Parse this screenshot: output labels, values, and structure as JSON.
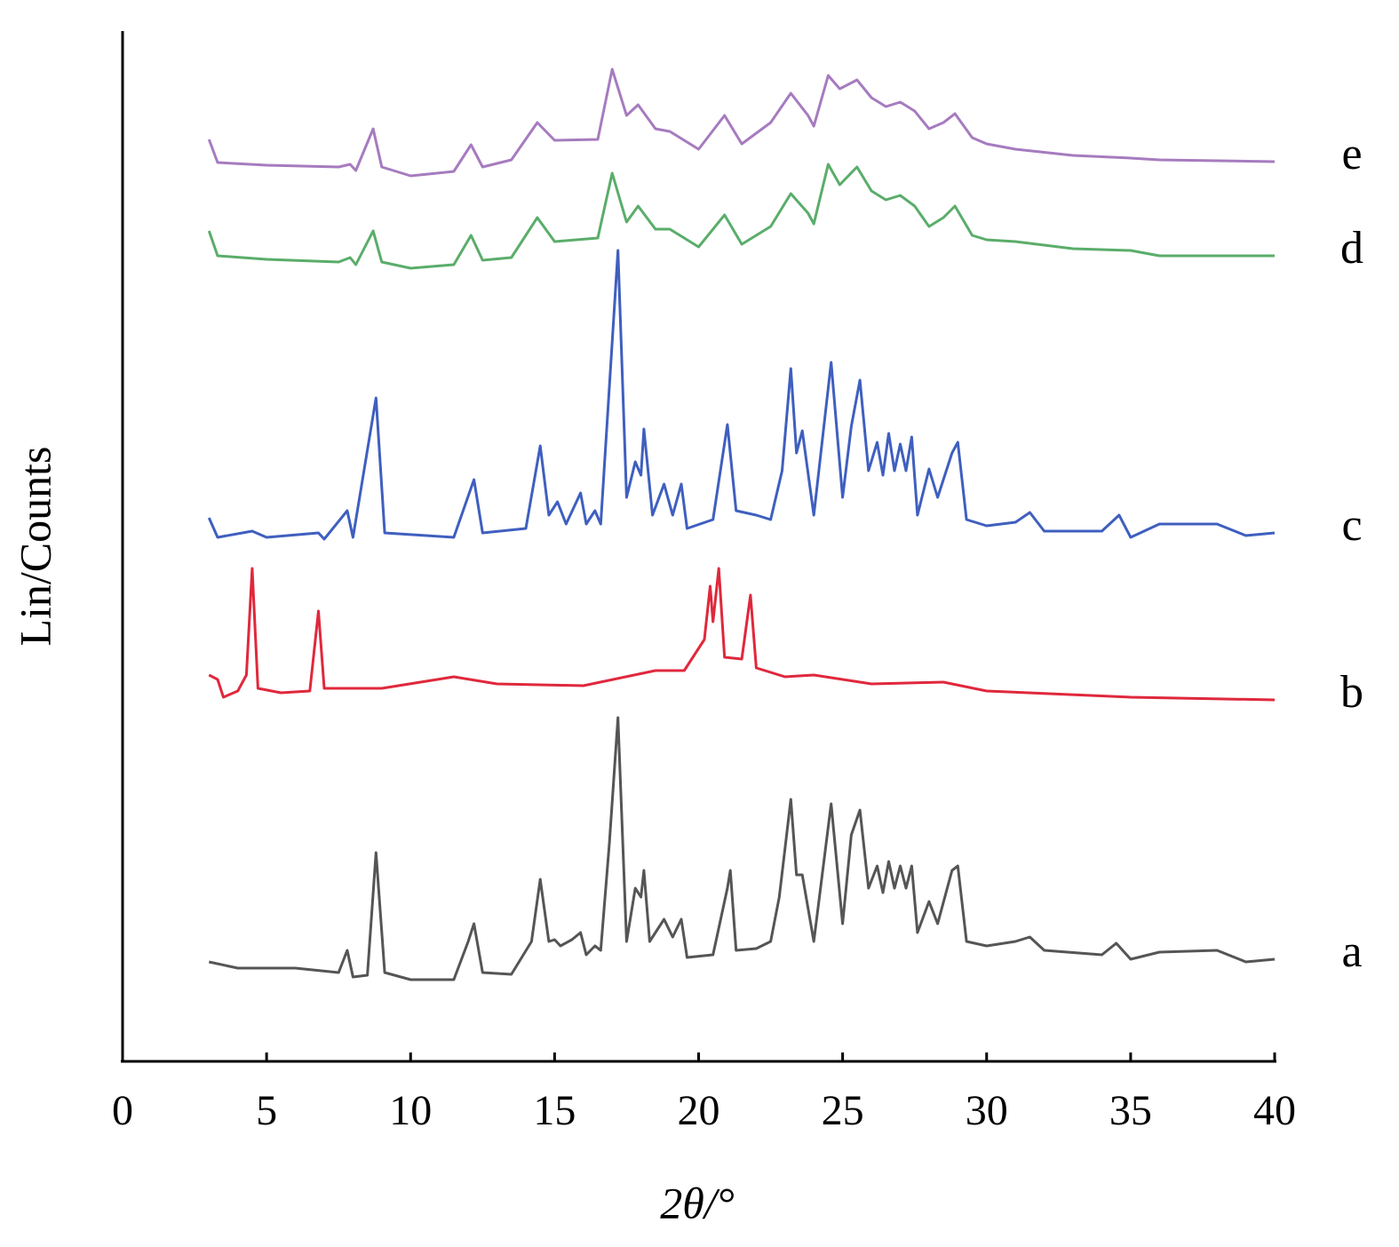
{
  "chart_data": {
    "type": "line",
    "xlabel": "2θ/°",
    "ylabel": "Lin/Counts",
    "xlim": [
      0,
      40
    ],
    "xticks": [
      0,
      5,
      10,
      15,
      20,
      25,
      30,
      35,
      40
    ],
    "ylim": [
      0,
      1160
    ],
    "series": [
      {
        "name": "a",
        "color": "#555555",
        "x": [
          3.0,
          4,
          6,
          7.5,
          7.8,
          8.0,
          8.5,
          8.8,
          9.1,
          10,
          11.5,
          12.0,
          12.2,
          12.5,
          13.5,
          14.2,
          14.5,
          14.8,
          15.0,
          15.2,
          15.6,
          15.9,
          16.1,
          16.4,
          16.6,
          16.9,
          17.2,
          17.5,
          17.8,
          18.0,
          18.1,
          18.3,
          18.8,
          19.1,
          19.4,
          19.6,
          20.5,
          21.0,
          21.1,
          21.3,
          22,
          22.5,
          22.8,
          23.2,
          23.4,
          23.6,
          24.0,
          24.6,
          25.0,
          25.3,
          25.6,
          25.9,
          26.2,
          26.4,
          26.6,
          26.8,
          27.0,
          27.2,
          27.4,
          27.6,
          28.0,
          28.3,
          28.8,
          29.0,
          29.3,
          30,
          31,
          31.5,
          32,
          34,
          34.5,
          35,
          36,
          38,
          39,
          40
        ],
        "values": [
          112,
          105,
          105,
          100,
          125,
          95,
          97,
          235,
          100,
          92,
          92,
          135,
          155,
          100,
          98,
          135,
          205,
          135,
          137,
          130,
          137,
          145,
          120,
          130,
          125,
          245,
          387,
          135,
          195,
          185,
          215,
          135,
          160,
          140,
          160,
          117,
          120,
          195,
          215,
          125,
          127,
          135,
          185,
          295,
          210,
          210,
          135,
          290,
          155,
          255,
          283,
          195,
          220,
          190,
          225,
          195,
          220,
          195,
          220,
          145,
          180,
          155,
          215,
          220,
          135,
          130,
          135,
          140,
          125,
          120,
          133,
          115,
          123,
          125,
          112,
          115
        ]
      },
      {
        "name": "b",
        "color": "#e0283c",
        "x": [
          3.0,
          3.3,
          3.5,
          4.0,
          4.3,
          4.5,
          4.7,
          5.5,
          6.5,
          6.8,
          7.0,
          9,
          11.5,
          13,
          16,
          18.5,
          19.5,
          20.2,
          20.4,
          20.5,
          20.7,
          20.9,
          21.5,
          21.8,
          22.0,
          23,
          24,
          26,
          28.5,
          30,
          35,
          40
        ],
        "values": [
          435,
          430,
          410,
          417,
          435,
          555,
          420,
          415,
          417,
          507,
          420,
          420,
          433,
          425,
          423,
          440,
          440,
          475,
          535,
          495,
          555,
          455,
          453,
          525,
          443,
          433,
          435,
          425,
          427,
          417,
          410,
          407
        ]
      },
      {
        "name": "c",
        "color": "#3f5fbf",
        "x": [
          3.0,
          3.3,
          4.5,
          5,
          6.8,
          7.0,
          7.8,
          8.0,
          8.8,
          9.1,
          11.5,
          12.2,
          12.5,
          14.0,
          14.5,
          14.8,
          15.1,
          15.4,
          15.9,
          16.1,
          16.4,
          16.6,
          17.2,
          17.5,
          17.8,
          18.0,
          18.1,
          18.4,
          18.8,
          19.1,
          19.4,
          19.6,
          20.5,
          21.0,
          21.3,
          22,
          22.5,
          22.9,
          23.2,
          23.4,
          23.6,
          24.0,
          24.6,
          25.0,
          25.3,
          25.6,
          25.9,
          26.2,
          26.4,
          26.6,
          26.8,
          27.0,
          27.2,
          27.4,
          27.6,
          28.0,
          28.3,
          28.8,
          29.0,
          29.3,
          30,
          31,
          31.5,
          32,
          34,
          34.6,
          35,
          36,
          37,
          38,
          39,
          40
        ],
        "values": [
          612,
          590,
          597,
          590,
          595,
          588,
          620,
          590,
          747,
          595,
          590,
          655,
          595,
          600,
          693,
          615,
          630,
          605,
          640,
          605,
          620,
          605,
          913,
          635,
          675,
          660,
          712,
          615,
          650,
          615,
          650,
          600,
          610,
          717,
          620,
          615,
          610,
          665,
          780,
          685,
          710,
          615,
          787,
          635,
          715,
          767,
          665,
          697,
          660,
          707,
          665,
          695,
          665,
          703,
          615,
          667,
          635,
          685,
          697,
          610,
          603,
          607,
          618,
          597,
          597,
          615,
          590,
          605,
          605,
          605,
          592,
          595
        ]
      },
      {
        "name": "d",
        "color": "#5aad6a",
        "x": [
          3.0,
          3.3,
          5,
          7.5,
          7.9,
          8.1,
          8.7,
          9.0,
          10,
          11.5,
          12.1,
          12.5,
          13.5,
          14.4,
          15,
          16.5,
          17.0,
          17.5,
          17.9,
          18.5,
          19,
          20,
          20.9,
          21.5,
          22.5,
          23.2,
          23.8,
          24.0,
          24.5,
          24.9,
          25.5,
          26.0,
          26.5,
          27.0,
          27.5,
          28.0,
          28.5,
          28.9,
          29.5,
          30,
          31,
          33,
          35,
          36,
          40
        ],
        "values": [
          935,
          907,
          903,
          900,
          905,
          897,
          935,
          900,
          893,
          897,
          930,
          902,
          905,
          950,
          923,
          927,
          1000,
          945,
          963,
          937,
          937,
          917,
          953,
          920,
          940,
          977,
          955,
          943,
          1010,
          987,
          1007,
          980,
          970,
          975,
          963,
          940,
          950,
          963,
          930,
          925,
          923,
          915,
          913,
          907,
          907
        ]
      },
      {
        "name": "e",
        "color": "#a67bbf",
        "x": [
          3.0,
          3.3,
          5,
          7.5,
          7.9,
          8.1,
          8.7,
          9.0,
          10,
          11.5,
          12.1,
          12.5,
          13.5,
          14.4,
          15,
          16.5,
          17.0,
          17.5,
          17.9,
          18.5,
          19,
          20,
          20.9,
          21.5,
          22.5,
          23.2,
          23.8,
          24.0,
          24.5,
          24.9,
          25.5,
          26.0,
          26.5,
          27.0,
          27.5,
          28.0,
          28.5,
          28.9,
          29.5,
          30,
          31,
          33,
          35,
          36,
          40
        ],
        "values": [
          1038,
          1012,
          1009,
          1007,
          1010,
          1003,
          1050,
          1007,
          997,
          1002,
          1032,
          1007,
          1015,
          1057,
          1037,
          1038,
          1117,
          1065,
          1077,
          1050,
          1047,
          1027,
          1065,
          1033,
          1057,
          1090,
          1065,
          1053,
          1110,
          1095,
          1105,
          1085,
          1075,
          1080,
          1070,
          1050,
          1057,
          1067,
          1040,
          1033,
          1027,
          1020,
          1017,
          1015,
          1013
        ]
      }
    ]
  }
}
